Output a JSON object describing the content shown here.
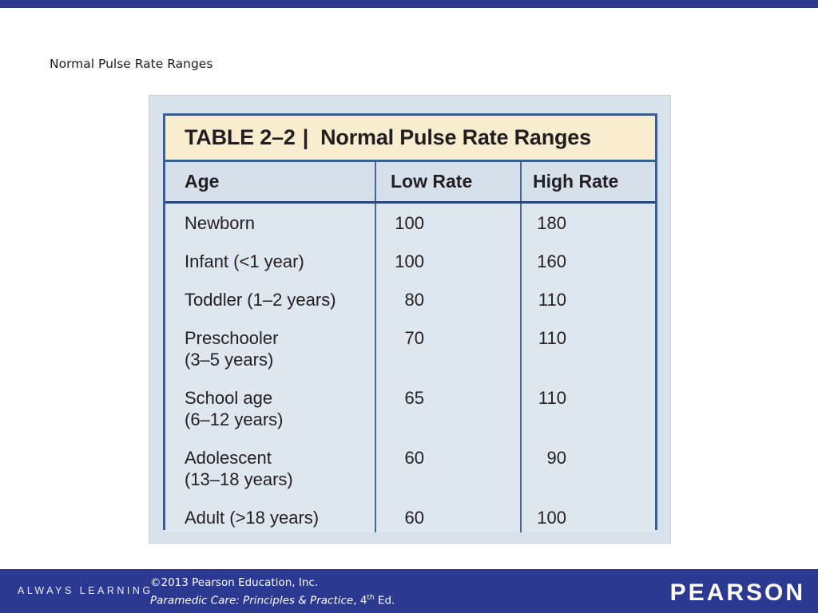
{
  "slide": {
    "title": "Normal Pulse Rate Ranges"
  },
  "table": {
    "caption_label": "TABLE 2–2",
    "caption_separator": "|",
    "caption_title": "Normal Pulse Rate Ranges",
    "columns": {
      "age": "Age",
      "low": "Low Rate",
      "high": "High Rate"
    },
    "rows": [
      {
        "age_line1": "Newborn",
        "age_line2": "",
        "low": "100",
        "high": "180"
      },
      {
        "age_line1": "Infant (<1 year)",
        "age_line2": "",
        "low": "100",
        "high": "160"
      },
      {
        "age_line1": "Toddler (1–2 years)",
        "age_line2": "",
        "low": "80",
        "high": "110"
      },
      {
        "age_line1": "Preschooler",
        "age_line2": "(3–5 years)",
        "low": "70",
        "high": "110"
      },
      {
        "age_line1": "School age",
        "age_line2": "(6–12 years)",
        "low": "65",
        "high": "110"
      },
      {
        "age_line1": "Adolescent",
        "age_line2": "(13–18 years)",
        "low": "60",
        "high": "90"
      },
      {
        "age_line1": "Adult (>18 years)",
        "age_line2": "",
        "low": "60",
        "high": "100"
      }
    ]
  },
  "footer": {
    "always_learning": "ALWAYS LEARNING",
    "copyright_line1": "©2013 Pearson Education, Inc.",
    "book_title": "Paramedic Care: Principles & Practice",
    "edition_prefix": ", 4",
    "edition_sup": "th",
    "edition_suffix": " Ed.",
    "brand": "PEARSON"
  },
  "colors": {
    "brand_navy": "#2b3990",
    "panel_bg": "#d8e2ec",
    "table_body_bg": "#dee6ef",
    "header_row_bg": "#d6e0eb",
    "caption_bg": "#f9edd0",
    "table_border": "#3c5e91",
    "column_rule": "#44699d",
    "header_underline": "#27477c",
    "table_text": "#231f20"
  }
}
